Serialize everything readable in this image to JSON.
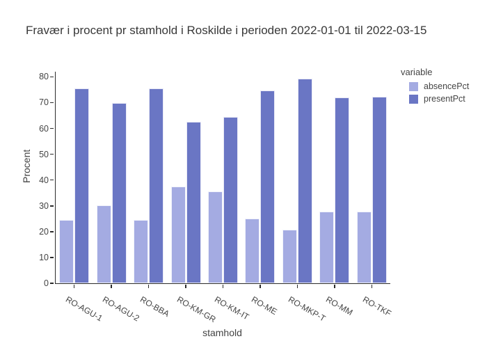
{
  "title": "Fravær i procent pr stamhold i Roskilde i perioden 2022-01-01 til 2022-03-15",
  "chart_data": {
    "type": "bar",
    "mode": "grouped",
    "title": "Fravær i procent pr stamhold i Roskilde i perioden 2022-01-01 til 2022-03-15",
    "xlabel": "stamhold",
    "ylabel": "Procent",
    "categories": [
      "RO-AGU-1",
      "RO-AGU-2",
      "RO-BBA",
      "RO-KM-GR",
      "RO-KM-IT",
      "RO-ME",
      "RO-MKP-T",
      "RO-MM",
      "RO-TKF"
    ],
    "series": [
      {
        "name": "absencePct",
        "color": "#a4abe2",
        "values": [
          24.6,
          30.1,
          24.5,
          37.4,
          35.6,
          25.2,
          20.8,
          27.9,
          27.8
        ]
      },
      {
        "name": "presentPct",
        "color": "#6a76c4",
        "values": [
          75.4,
          69.9,
          75.5,
          62.6,
          64.4,
          74.8,
          79.2,
          72.1,
          72.2
        ]
      }
    ],
    "yticks": [
      0,
      10,
      20,
      30,
      40,
      50,
      60,
      70,
      80
    ],
    "ylim": [
      0,
      82
    ],
    "grid": false,
    "xtick_angle": 30,
    "legend_title": "variable",
    "legend_position": "right-top",
    "axis_color": "#2b2b2b",
    "text_color": "#444444"
  }
}
